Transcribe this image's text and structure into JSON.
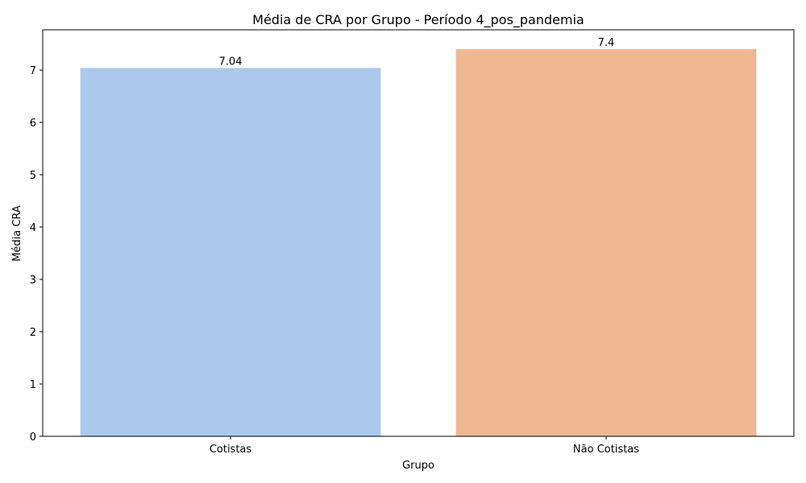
{
  "chart_data": {
    "type": "bar",
    "title": "Média de CRA por Grupo - Período 4_pos_pandemia",
    "xlabel": "Grupo",
    "ylabel": "Média CRA",
    "categories": [
      "Cotistas",
      "Não Cotistas"
    ],
    "values": [
      7.04,
      7.4
    ],
    "value_labels": [
      "7.04",
      "7.4"
    ],
    "colors": [
      "#abc9ec",
      "#f0b793"
    ],
    "ylim": [
      0,
      7.77
    ],
    "yticks": [
      0,
      1,
      2,
      3,
      4,
      5,
      6,
      7
    ],
    "grid": false,
    "legend": "none"
  }
}
